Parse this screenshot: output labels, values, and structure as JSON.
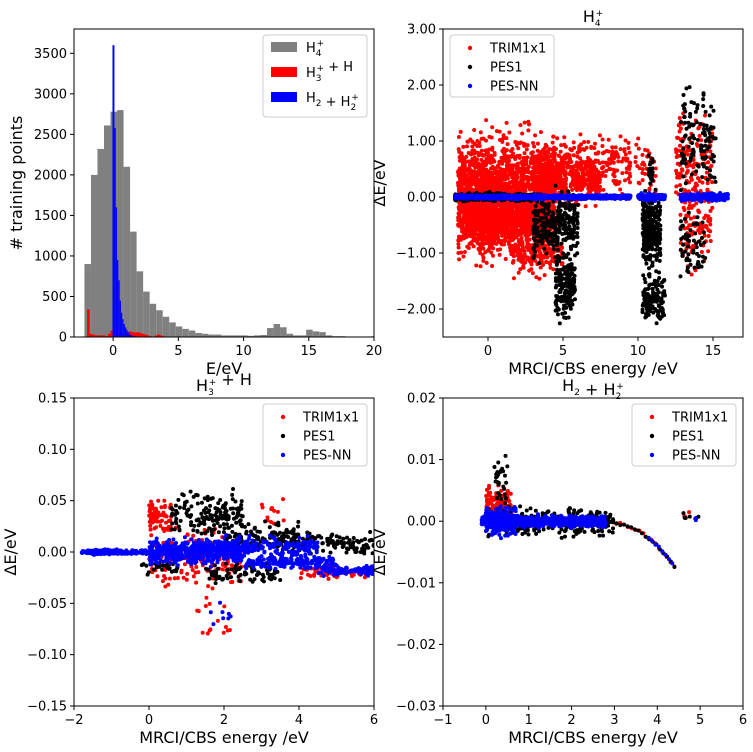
{
  "chart_data": [
    {
      "type": "bar",
      "panel": "top-left",
      "xlabel": "E/eV",
      "ylabel": "# training points",
      "xlim": [
        -3,
        20
      ],
      "ylim": [
        0,
        3800
      ],
      "xticks": [
        "0",
        "5",
        "10",
        "15",
        "20"
      ],
      "yticks": [
        "0",
        "500",
        "1000",
        "1500",
        "2000",
        "2500",
        "3000",
        "3500"
      ],
      "legend_position": "top-right",
      "series": [
        {
          "name": "H4+",
          "label_main": "H",
          "label_sub": "4",
          "label_sup": "+",
          "label_rest": "",
          "color": "#808080",
          "bins_start": -2.2,
          "bin_width": 0.5,
          "values": [
            900,
            2000,
            2320,
            2610,
            2780,
            2800,
            2100,
            1300,
            810,
            560,
            410,
            330,
            250,
            180,
            130,
            100,
            80,
            50,
            40,
            30,
            30,
            20,
            20,
            20,
            20,
            15,
            20,
            25,
            110,
            160,
            120,
            40,
            20,
            20,
            90,
            70,
            60,
            20,
            10,
            10,
            5,
            5,
            5,
            5,
            10,
            5
          ]
        },
        {
          "name": "H3+ + H",
          "label_main": "H",
          "label_sub": "3",
          "label_sup": "+",
          "label_rest": " + H",
          "color": "#ff0000",
          "bins_start": -2.0,
          "bin_width": 0.2,
          "values": [
            340,
            40,
            30,
            20,
            20,
            20,
            20,
            10,
            40,
            80,
            60,
            40,
            30,
            40,
            50,
            60,
            70,
            60,
            55,
            60,
            50,
            40,
            30,
            20,
            10,
            5,
            20,
            30,
            20,
            10,
            5,
            5,
            5,
            5,
            5
          ]
        },
        {
          "name": "H2 + H2+",
          "label_main": "H",
          "label_sub": "2",
          "label_sup": "",
          "label_rest": " + H",
          "label_sub2": "2",
          "label_sup2": "+",
          "color": "#0000ff",
          "bins": [
            [
              -0.05,
              0.1,
              3600
            ],
            [
              0.1,
              0.2,
              2580
            ],
            [
              0.2,
              0.3,
              1600
            ],
            [
              0.3,
              0.4,
              950
            ],
            [
              0.4,
              0.5,
              700
            ],
            [
              0.5,
              0.6,
              450
            ],
            [
              0.6,
              0.7,
              300
            ],
            [
              0.7,
              0.8,
              220
            ],
            [
              0.8,
              0.9,
              160
            ],
            [
              0.9,
              1.0,
              120
            ],
            [
              1.0,
              1.1,
              90
            ],
            [
              1.1,
              1.2,
              60
            ],
            [
              1.2,
              1.3,
              40
            ],
            [
              1.3,
              1.5,
              20
            ],
            [
              1.5,
              1.8,
              10
            ]
          ]
        }
      ]
    },
    {
      "type": "scatter",
      "panel": "top-right",
      "title": "H4+",
      "title_main": "H",
      "title_sub": "4",
      "title_sup": "+",
      "title_rest": "",
      "xlabel": "MRCI/CBS energy /eV",
      "ylabel": "ΔE/eV",
      "xlim": [
        -3,
        17
      ],
      "ylim": [
        -2.5,
        3.0
      ],
      "xticks": [
        0,
        5,
        10,
        15
      ],
      "yticks": [
        "−2.00",
        "−1.00",
        "0.00",
        "1.00",
        "2.00",
        "3.00"
      ],
      "yticks_values": [
        -2,
        -1,
        0,
        1,
        2,
        3
      ],
      "legend_position": "top-left",
      "series": [
        {
          "name": "TRIM1x1",
          "color": "#ff0000",
          "clusters": [
            [
              -2.0,
              4.5,
              0.0,
              0.9,
              2200
            ],
            [
              3.0,
              7.5,
              0.35,
              0.45,
              450
            ],
            [
              4.5,
              9.5,
              0.6,
              0.45,
              180
            ],
            [
              -1.5,
              4.0,
              -0.35,
              0.4,
              700
            ],
            [
              1.5,
              5.0,
              -1.0,
              0.35,
              180
            ],
            [
              9.8,
              11.2,
              0.5,
              0.45,
              40
            ],
            [
              12.5,
              15.0,
              0.6,
              0.8,
              150
            ],
            [
              12.8,
              15.0,
              -0.6,
              0.6,
              90
            ]
          ]
        },
        {
          "name": "PES1",
          "color": "#000000",
          "clusters": [
            [
              -2.2,
              3.5,
              0.0,
              0.06,
              500
            ],
            [
              3.0,
              6.0,
              -0.5,
              0.5,
              300
            ],
            [
              4.5,
              5.8,
              -1.6,
              0.5,
              180
            ],
            [
              10.3,
              11.5,
              -0.6,
              0.6,
              280
            ],
            [
              10.3,
              11.8,
              -1.8,
              0.4,
              120
            ],
            [
              12.8,
              15.2,
              1.0,
              0.8,
              120
            ],
            [
              12.8,
              14.5,
              -0.8,
              0.5,
              60
            ],
            [
              10.7,
              11.0,
              0.5,
              0.25,
              30
            ]
          ]
        },
        {
          "name": "PES-NN",
          "color": "#0000ff",
          "clusters": [
            [
              -2.2,
              9.5,
              0.0,
              0.03,
              1400
            ],
            [
              10.0,
              11.8,
              0.0,
              0.05,
              200
            ],
            [
              12.8,
              16.0,
              0.0,
              0.06,
              250
            ]
          ]
        }
      ]
    },
    {
      "type": "scatter",
      "panel": "bottom-left",
      "title": "H3+ + H",
      "title_main": "H",
      "title_sub": "3",
      "title_sup": "+",
      "title_rest": " + H",
      "xlabel": "MRCI/CBS energy /eV",
      "ylabel": "ΔE/eV",
      "xlim": [
        -2,
        6
      ],
      "ylim": [
        -0.15,
        0.15
      ],
      "xticks": [
        -2,
        0,
        2,
        4,
        6
      ],
      "yticks": [
        "−0.15",
        "−0.10",
        "−0.05",
        "0.00",
        "0.05",
        "0.10",
        "0.15"
      ],
      "yticks_values": [
        -0.15,
        -0.1,
        -0.05,
        0,
        0.05,
        0.1,
        0.15
      ],
      "legend_position": "top-right",
      "series": [
        {
          "name": "TRIM1x1",
          "color": "#ff0000",
          "clusters": [
            [
              0.0,
              0.6,
              0.035,
              0.015,
              70
            ],
            [
              0.0,
              2.5,
              -0.005,
              0.025,
              160
            ],
            [
              1.2,
              2.2,
              -0.07,
              0.025,
              14
            ],
            [
              3.0,
              3.6,
              0.04,
              0.02,
              12
            ],
            [
              4.0,
              5.8,
              -0.02,
              0.005,
              60
            ]
          ]
        },
        {
          "name": "PES1",
          "color": "#000000",
          "clusters": [
            [
              0.6,
              2.5,
              0.035,
              0.02,
              160
            ],
            [
              2.0,
              4.0,
              0.015,
              0.012,
              120
            ],
            [
              3.8,
              6.0,
              0.008,
              0.01,
              120
            ],
            [
              1.5,
              3.5,
              -0.02,
              0.01,
              80
            ],
            [
              -0.2,
              0.8,
              -0.015,
              0.006,
              30
            ]
          ]
        },
        {
          "name": "PES-NN",
          "color": "#0000ff",
          "clusters": [
            [
              -1.8,
              0.0,
              0.0,
              0.002,
              200
            ],
            [
              0.0,
              2.5,
              0.0,
              0.01,
              500
            ],
            [
              1.8,
              4.5,
              0.005,
              0.008,
              200
            ],
            [
              2.5,
              5.0,
              -0.01,
              0.006,
              180
            ],
            [
              4.5,
              6.0,
              -0.018,
              0.004,
              100
            ],
            [
              1.5,
              2.2,
              -0.06,
              0.015,
              8
            ]
          ]
        }
      ]
    },
    {
      "type": "scatter",
      "panel": "bottom-right",
      "title": "H2 + H2+",
      "title_main": "H",
      "title_sub": "2",
      "title_sup": "",
      "title_rest": " + H",
      "title_sub2": "2",
      "title_sup2": "+",
      "xlabel": "MRCI/CBS energy /eV",
      "ylabel": "ΔE/eV",
      "xlim": [
        -1,
        6
      ],
      "ylim": [
        -0.03,
        0.02
      ],
      "xticks": [
        -1,
        0,
        1,
        2,
        3,
        4,
        5,
        6
      ],
      "yticks": [
        "−0.03",
        "−0.02",
        "−0.01",
        "0.00",
        "0.01",
        "0.02"
      ],
      "yticks_values": [
        -0.03,
        -0.02,
        -0.01,
        0,
        0.01,
        0.02
      ],
      "legend_position": "top-right",
      "series": [
        {
          "name": "TRIM1x1",
          "color": "#ff0000",
          "clusters": [
            [
              0.0,
              0.6,
              0.003,
              0.003,
              100
            ],
            [
              4.6,
              4.75,
              0.001,
              0.001,
              4
            ]
          ],
          "curve": {
            "x0": 2.5,
            "x1": 4.4,
            "n": 22
          }
        },
        {
          "name": "PES1",
          "color": "#000000",
          "clusters": [
            [
              0.0,
              3.0,
              0.0,
              0.002,
              260
            ],
            [
              0.2,
              0.5,
              0.006,
              0.004,
              30
            ],
            [
              4.6,
              5.0,
              0.0005,
              0.001,
              6
            ]
          ],
          "curve": {
            "x0": 2.8,
            "x1": 4.4,
            "n": 20
          }
        },
        {
          "name": "PES-NN",
          "color": "#0000ff",
          "clusters": [
            [
              -0.1,
              2.8,
              0.0,
              0.0008,
              800
            ],
            [
              0.0,
              0.7,
              0.0,
              0.002,
              250
            ],
            [
              4.9,
              5.0,
              0.0,
              0.0006,
              3
            ]
          ],
          "curve": {
            "x0": 3.8,
            "x1": 4.35,
            "n": 8
          }
        }
      ]
    }
  ]
}
